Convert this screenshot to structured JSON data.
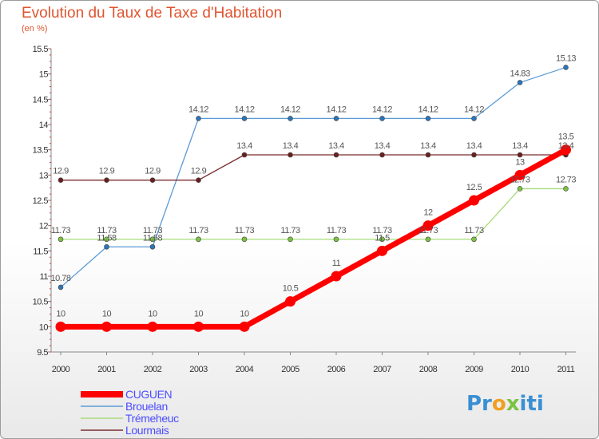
{
  "header": {
    "title": "Evolution du Taux de Taxe d'Habitation",
    "subtitle": "(en %)"
  },
  "logo": {
    "parts": [
      {
        "text": "Pr",
        "color": "#3a8fd4"
      },
      {
        "text": "o",
        "color": "#f0a020"
      },
      {
        "text": "x",
        "color": "#7cc242"
      },
      {
        "text": "i",
        "color": "#3a8fd4"
      },
      {
        "text": "ti",
        "color": "#3a8fd4"
      }
    ]
  },
  "chart_data": {
    "type": "line",
    "title": "Evolution du Taux de Taxe d'Habitation",
    "ylabel": "(en %)",
    "xlabel": "",
    "x": [
      "2000",
      "2001",
      "2002",
      "2003",
      "2004",
      "2005",
      "2006",
      "2007",
      "2008",
      "2009",
      "2010",
      "2011"
    ],
    "ylim": [
      9.5,
      15.5
    ],
    "yticks": [
      "9.5",
      "10",
      "10.5",
      "11",
      "11.5",
      "12",
      "12.5",
      "13",
      "13.5",
      "14",
      "14.5",
      "15",
      "15.5"
    ],
    "grid": false,
    "legend_position": "bottom-left",
    "series": [
      {
        "name": "Brouelan",
        "color": "#5b9bd5",
        "marker_color": "#2e75b6",
        "values": [
          10.78,
          11.58,
          11.58,
          14.12,
          14.12,
          14.12,
          14.12,
          14.12,
          14.12,
          14.12,
          14.83,
          15.13
        ],
        "labels": [
          "10.78",
          "11.58",
          "11.58",
          "14.12",
          "14.12",
          "14.12",
          "14.12",
          "14.12",
          "14.12",
          "14.12",
          "14.83",
          "15.13"
        ]
      },
      {
        "name": "Lourmais",
        "color": "#7b2c2c",
        "marker_color": "#6a1f1f",
        "values": [
          12.9,
          12.9,
          12.9,
          12.9,
          13.4,
          13.4,
          13.4,
          13.4,
          13.4,
          13.4,
          13.4,
          13.4
        ],
        "labels": [
          "12.9",
          "12.9",
          "12.9",
          "12.9",
          "13.4",
          "13.4",
          "13.4",
          "13.4",
          "13.4",
          "13.4",
          "13.4",
          "13.4"
        ]
      },
      {
        "name": "Trémeheuc",
        "color": "#a8dc7a",
        "marker_color": "#7cc242",
        "values": [
          11.73,
          11.73,
          11.73,
          11.73,
          11.73,
          11.73,
          11.73,
          11.73,
          11.73,
          11.73,
          12.73,
          12.73
        ],
        "labels": [
          "11.73",
          "11.73",
          "11.73",
          "11.73",
          "11.73",
          "11.73",
          "11.73",
          "11.73",
          "11.73",
          "11.73",
          "12.73",
          "12.73"
        ]
      },
      {
        "name": "CUGUEN",
        "color": "#ff0000",
        "marker_color": "#ff0000",
        "values": [
          10,
          10,
          10,
          10,
          10,
          10.5,
          11,
          11.5,
          12,
          12.5,
          13,
          13.5
        ],
        "labels": [
          "10",
          "10",
          "10",
          "10",
          "10",
          "10.5",
          "11",
          "11.5",
          "12",
          "12.5",
          "13",
          "13.5"
        ]
      }
    ],
    "legend": [
      {
        "name": "CUGUEN",
        "color": "#ff0000",
        "text_color": "#4c4cff"
      },
      {
        "name": "Brouelan",
        "color": "#5b9bd5",
        "text_color": "#4c4cff"
      },
      {
        "name": "Trémeheuc",
        "color": "#a8dc7a",
        "text_color": "#4c4cff"
      },
      {
        "name": "Lourmais",
        "color": "#7b2c2c",
        "text_color": "#4c4cff"
      }
    ]
  }
}
